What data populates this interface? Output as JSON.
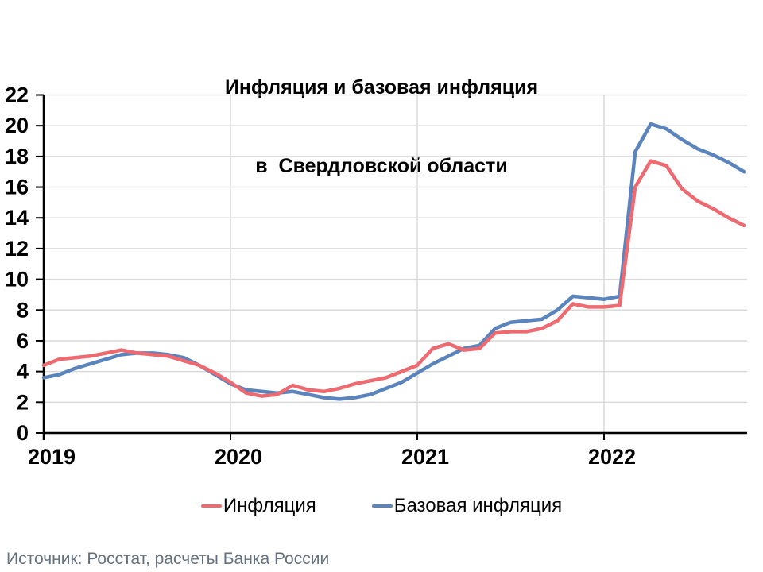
{
  "title": {
    "line1": "Инфляция и базовая инфляция",
    "line2": "в  Свердловской области"
  },
  "source": "Источник: Росстат, расчеты Банка России",
  "legend": [
    {
      "label": "Инфляция",
      "color": "#ed6a70"
    },
    {
      "label": "Базовая инфляция",
      "color": "#5b84bd"
    }
  ],
  "colors": {
    "inflation_line": "#ed6a70",
    "core_inflation_line": "#5b84bd",
    "gridline": "#d9d9d9",
    "axis": "#000000",
    "source_text": "#64707e"
  },
  "chart_data": {
    "type": "line",
    "title": "Инфляция и базовая инфляция в  Свердловской области",
    "xlabel": "",
    "ylabel": "",
    "ylim": [
      0,
      22
    ],
    "grid": true,
    "legend_position": "bottom",
    "x": [
      "2019-01",
      "2019-02",
      "2019-03",
      "2019-04",
      "2019-05",
      "2019-06",
      "2019-07",
      "2019-08",
      "2019-09",
      "2019-10",
      "2019-11",
      "2019-12",
      "2020-01",
      "2020-02",
      "2020-03",
      "2020-04",
      "2020-05",
      "2020-06",
      "2020-07",
      "2020-08",
      "2020-09",
      "2020-10",
      "2020-11",
      "2020-12",
      "2021-01",
      "2021-02",
      "2021-03",
      "2021-04",
      "2021-05",
      "2021-06",
      "2021-07",
      "2021-08",
      "2021-09",
      "2021-10",
      "2021-11",
      "2021-12",
      "2022-01",
      "2022-02",
      "2022-03",
      "2022-04",
      "2022-05",
      "2022-06",
      "2022-07",
      "2022-08",
      "2022-09",
      "2022-10"
    ],
    "y_ticks": [
      0,
      2,
      4,
      6,
      8,
      10,
      12,
      14,
      16,
      18,
      20,
      22
    ],
    "x_ticks": [
      {
        "label": "2019",
        "month_index": 0
      },
      {
        "label": "2020",
        "month_index": 12
      },
      {
        "label": "2021",
        "month_index": 24
      },
      {
        "label": "2022",
        "month_index": 36
      }
    ],
    "series": [
      {
        "name": "Инфляция",
        "color": "#ed6a70",
        "values": [
          4.4,
          4.8,
          4.9,
          5.0,
          5.2,
          5.4,
          5.2,
          5.1,
          5.0,
          4.7,
          4.4,
          3.9,
          3.3,
          2.6,
          2.4,
          2.5,
          3.1,
          2.8,
          2.7,
          2.9,
          3.2,
          3.4,
          3.6,
          4.0,
          4.4,
          5.5,
          5.8,
          5.4,
          5.5,
          6.5,
          6.6,
          6.6,
          6.8,
          7.3,
          8.4,
          8.2,
          8.2,
          8.3,
          16.0,
          17.7,
          17.4,
          15.9,
          15.1,
          14.6,
          14.0,
          13.5
        ]
      },
      {
        "name": "Базовая инфляция",
        "color": "#5b84bd",
        "values": [
          3.6,
          3.8,
          4.2,
          4.5,
          4.8,
          5.1,
          5.2,
          5.2,
          5.1,
          4.9,
          4.4,
          3.8,
          3.2,
          2.8,
          2.7,
          2.6,
          2.7,
          2.5,
          2.3,
          2.2,
          2.3,
          2.5,
          2.9,
          3.3,
          3.9,
          4.5,
          5.0,
          5.5,
          5.7,
          6.8,
          7.2,
          7.3,
          7.4,
          8.0,
          8.9,
          8.8,
          8.7,
          8.9,
          18.3,
          20.1,
          19.8,
          19.1,
          18.5,
          18.1,
          17.6,
          17.0
        ]
      }
    ]
  }
}
